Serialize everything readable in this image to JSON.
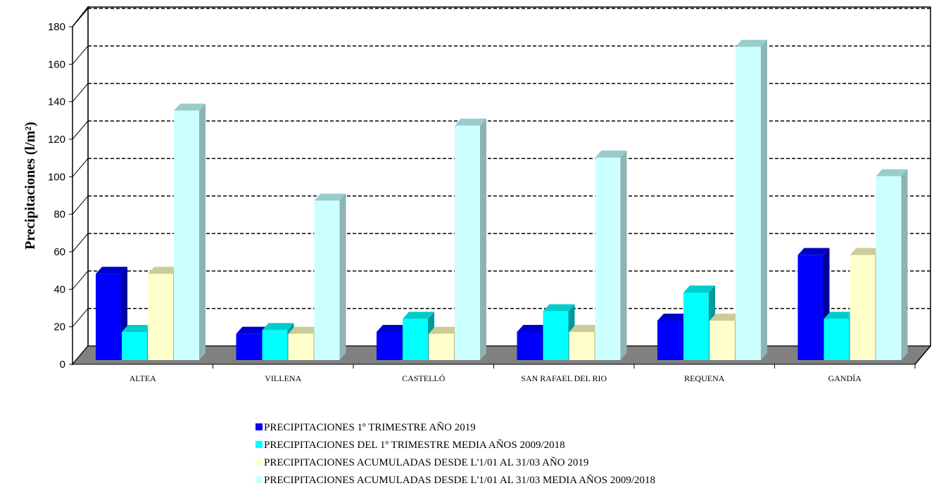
{
  "chart_data": {
    "type": "bar",
    "ylabel": "Precipitaciones (l/m²)",
    "ylim": [
      0,
      180
    ],
    "yticks": [
      0,
      20,
      40,
      60,
      80,
      100,
      120,
      140,
      160,
      180
    ],
    "grid": true,
    "legend_position": "bottom",
    "categories": [
      "ALTEA",
      "VILLENA",
      "CASTELLÓ",
      "SAN RAFAEL DEL RIO",
      "REQUENA",
      "GANDÍA"
    ],
    "series": [
      {
        "name": "PRECIPITACIONES 1º TRIMESTRE AÑO 2019",
        "color": "#0000ff",
        "top_color": "#0000cc",
        "side_color": "#00009a",
        "values": [
          46,
          14,
          15,
          15,
          21,
          56
        ]
      },
      {
        "name": "PRECIPITACIONES DEL 1º TRIMESTRE MEDIA AÑOS 2009/2018",
        "color": "#00ffff",
        "top_color": "#00cccc",
        "side_color": "#009999",
        "values": [
          15,
          16,
          22,
          26,
          36,
          22
        ]
      },
      {
        "name": "PRECIPITACIONES ACUMULADAS DESDE L'1/01 AL 31/03 AÑO 2019",
        "color": "#ffffcc",
        "top_color": "#cccc99",
        "side_color": "#b3b38f",
        "values": [
          46,
          14,
          14,
          15,
          21,
          56
        ]
      },
      {
        "name": "PRECIPITACIONES ACUMULADAS DESDE L'1/01 AL 31/03 MEDIA AÑOS 2009/2018",
        "color": "#ccffff",
        "top_color": "#99cccc",
        "side_color": "#8fb3b3",
        "values": [
          133,
          85,
          125,
          108,
          167,
          98
        ]
      }
    ]
  }
}
